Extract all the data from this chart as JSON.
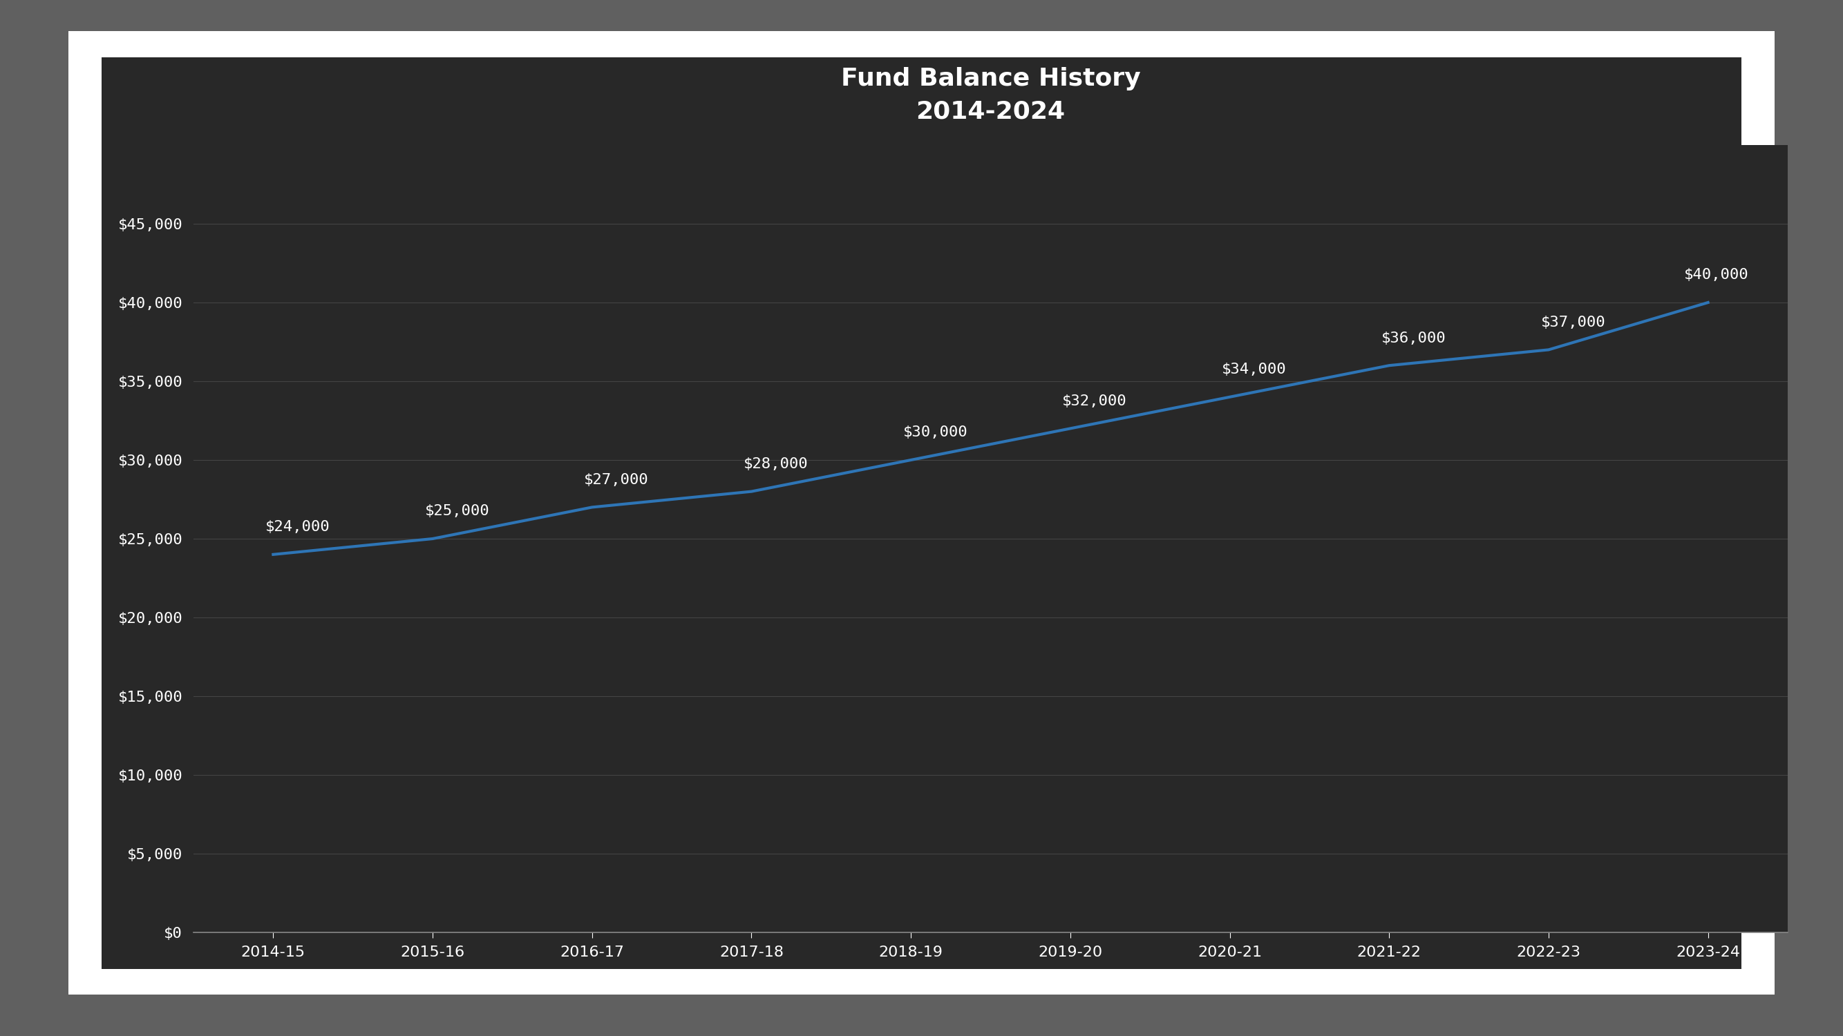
{
  "title_line1": "Fund Balance History",
  "title_line2": "2014-2024",
  "categories": [
    "2014-15",
    "2015-16",
    "2016-17",
    "2017-18",
    "2018-19",
    "2019-20",
    "2020-21",
    "2021-22",
    "2022-23",
    "2023-24"
  ],
  "values": [
    24000,
    25000,
    27000,
    28000,
    30000,
    32000,
    34000,
    36000,
    37000,
    40000
  ],
  "labels": [
    "$24,000",
    "$25,000",
    "$27,000",
    "$28,000",
    "$30,000",
    "$32,000",
    "$34,000",
    "$36,000",
    "$37,000",
    "$40,000"
  ],
  "line_color": "#2e75b6",
  "line_width": 3.0,
  "outer_bg_color": "#606060",
  "dark_bg_color": "#282828",
  "white_border_color": "#ffffff",
  "text_color": "#ffffff",
  "grid_color": "#444444",
  "title_fontsize": 26,
  "tick_fontsize": 16,
  "label_fontsize": 16,
  "ylim": [
    0,
    50000
  ],
  "yticks": [
    0,
    5000,
    10000,
    15000,
    20000,
    25000,
    30000,
    35000,
    40000,
    45000
  ],
  "ytick_labels": [
    "$0",
    "$5,000",
    "$10,000",
    "$15,000",
    "$20,000",
    "$25,000",
    "$30,000",
    "$35,000",
    "$40,000",
    "$45,000"
  ]
}
